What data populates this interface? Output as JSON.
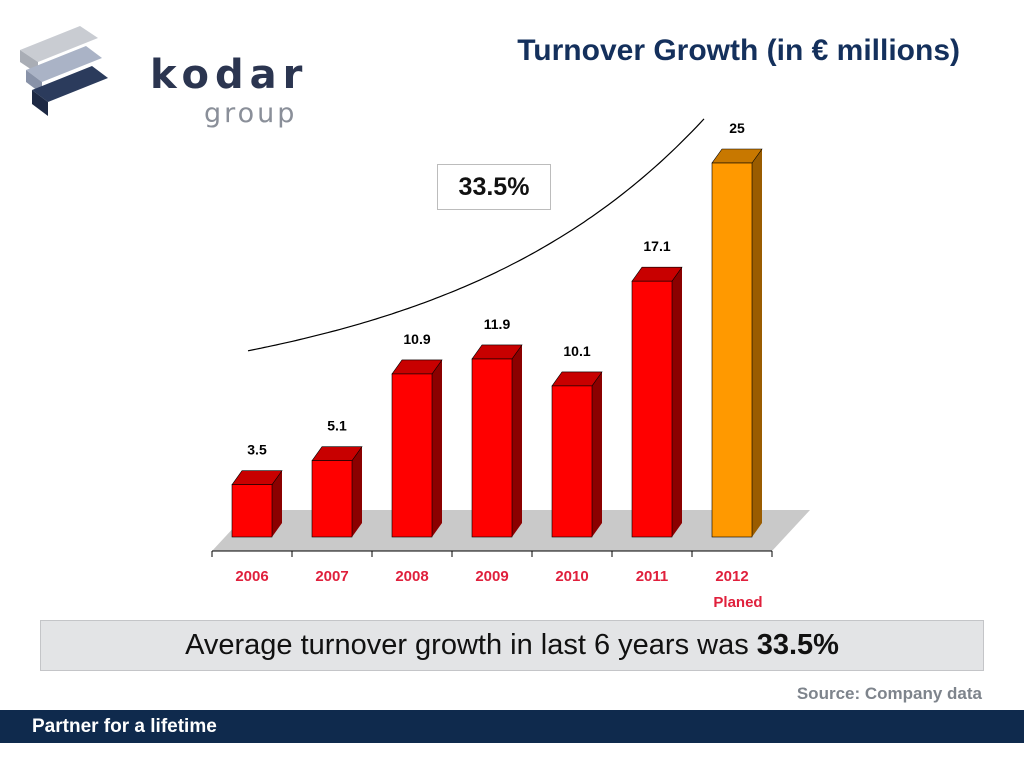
{
  "logo": {
    "word": "kodar",
    "sub": "group"
  },
  "title": "Turnover Growth (in € millions)",
  "cagr_label": "33.5%",
  "summary": {
    "text": "Average turnover growth in last 6 years was",
    "value": "33.5%"
  },
  "source": "Source: Company data",
  "footer": "Partner for a lifetime",
  "colors": {
    "bar": "#ff0000",
    "bar_side": "#8b0000",
    "bar_top": "#c80000",
    "planned_bar": "#ff9900",
    "planned_side": "#9a5c00",
    "planned_top": "#c87800",
    "floor": "#c9c9c9",
    "axis_label": "#e0203c",
    "title": "#14305c",
    "footer_bg": "#0f2a4d"
  },
  "chart_data": {
    "type": "bar",
    "categories": [
      "2006",
      "2007",
      "2008",
      "2009",
      "2010",
      "2011",
      "2012"
    ],
    "category_sublabels": [
      "",
      "",
      "",
      "",
      "",
      "",
      "Planed"
    ],
    "values": [
      3.5,
      5.1,
      10.9,
      11.9,
      10.1,
      17.1,
      25
    ],
    "value_labels": [
      "3.5",
      "5.1",
      "10.9",
      "11.9",
      "10.1",
      "17.1",
      "25"
    ],
    "planned_index": 6,
    "trend_line": true,
    "ylim": [
      0,
      25
    ]
  }
}
